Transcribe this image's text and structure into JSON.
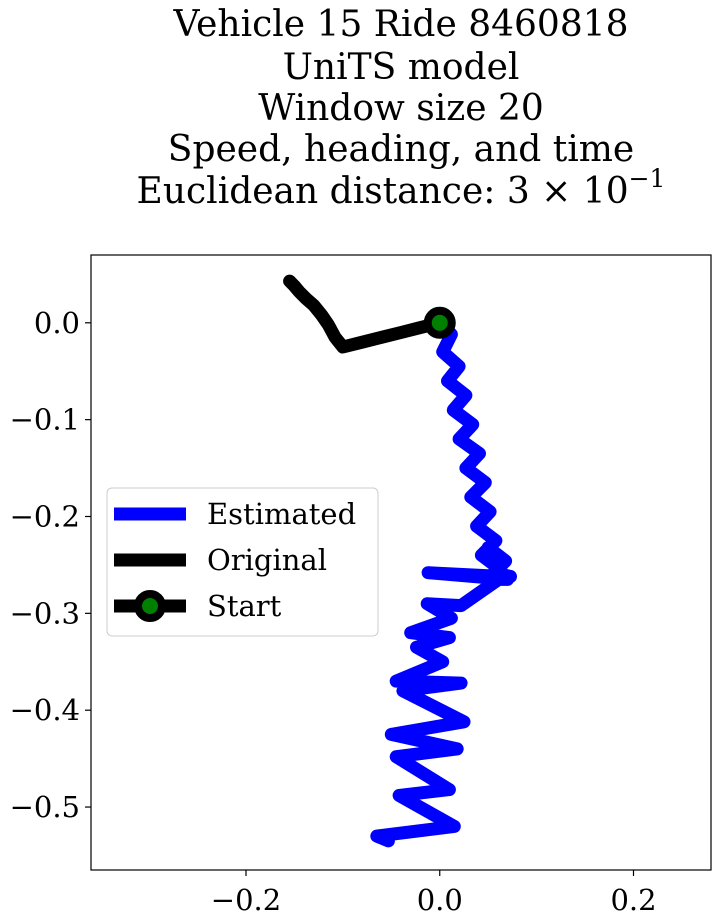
{
  "chart_data": {
    "type": "line",
    "title_lines": [
      "Vehicle 15 Ride 8460818",
      "UniTS model",
      "Window size 20",
      "Speed, heading, and time",
      "Euclidean distance: 3 × 10"
    ],
    "title_exponent": "−1",
    "xlabel": "",
    "ylabel": "",
    "xlim": [
      -0.36,
      0.28
    ],
    "ylim": [
      -0.565,
      0.07
    ],
    "x_ticks": [
      -0.2,
      0.0,
      0.2
    ],
    "x_tick_labels": [
      "−0.2",
      "0.0",
      "0.2"
    ],
    "y_ticks": [
      0.0,
      -0.1,
      -0.2,
      -0.3,
      -0.4,
      -0.5
    ],
    "y_tick_labels": [
      "0.0",
      "−0.1",
      "−0.2",
      "−0.3",
      "−0.4",
      "−0.5"
    ],
    "grid": false,
    "legend_position": "center-left",
    "series": [
      {
        "name": "Estimated",
        "color": "#0000ff",
        "x": [
          0.0,
          0.012,
          0.003,
          0.02,
          0.008,
          0.027,
          0.014,
          0.034,
          0.02,
          0.041,
          0.027,
          0.047,
          0.032,
          0.052,
          0.038,
          0.058,
          0.043,
          0.063,
          0.05,
          0.068,
          0.056,
          0.073,
          0.06,
          0.07,
          -0.012,
          0.065,
          0.022,
          -0.013,
          0.012,
          -0.03,
          0.01,
          -0.024,
          0.003,
          -0.045,
          0.022,
          -0.038,
          0.025,
          -0.05,
          0.018,
          -0.045,
          0.01,
          -0.042,
          0.015,
          -0.065,
          -0.053
        ],
        "y": [
          0.0,
          -0.012,
          -0.03,
          -0.045,
          -0.06,
          -0.075,
          -0.09,
          -0.105,
          -0.12,
          -0.135,
          -0.15,
          -0.165,
          -0.18,
          -0.195,
          -0.21,
          -0.225,
          -0.24,
          -0.255,
          -0.232,
          -0.246,
          -0.258,
          -0.262,
          -0.265,
          -0.265,
          -0.258,
          -0.262,
          -0.292,
          -0.29,
          -0.305,
          -0.32,
          -0.325,
          -0.335,
          -0.35,
          -0.37,
          -0.372,
          -0.38,
          -0.412,
          -0.425,
          -0.44,
          -0.448,
          -0.482,
          -0.488,
          -0.52,
          -0.53,
          -0.535
        ]
      },
      {
        "name": "Original",
        "color": "#000000",
        "x": [
          0.0,
          -0.02,
          -0.04,
          -0.06,
          -0.08,
          -0.1,
          -0.108,
          -0.115,
          -0.122,
          -0.13,
          -0.138,
          -0.145,
          -0.15,
          -0.155
        ],
        "y": [
          0.0,
          -0.005,
          -0.01,
          -0.015,
          -0.02,
          -0.025,
          -0.015,
          -0.002,
          0.008,
          0.018,
          0.025,
          0.032,
          0.038,
          0.043
        ]
      }
    ],
    "start_point": {
      "name": "Start",
      "x": 0.0,
      "y": 0.0,
      "marker_edge_color": "#000000",
      "marker_face_color": "#008000"
    }
  }
}
